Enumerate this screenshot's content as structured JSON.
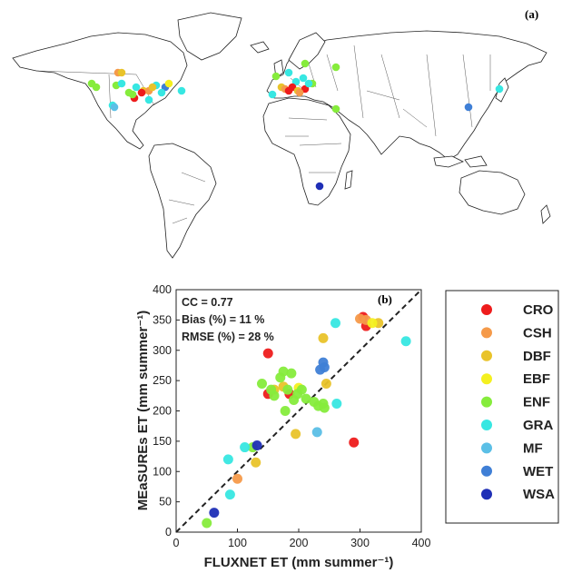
{
  "colors": {
    "CRO": "#ee1c1c",
    "CSH": "#f59a4a",
    "DBF": "#e9c32a",
    "EBF": "#f4f020",
    "ENF": "#86ec3c",
    "GRA": "#37e7e2",
    "MF": "#5bbfe6",
    "WET": "#3f7fd6",
    "WSA": "#1f2fb6"
  },
  "map_panel": {
    "label": "(a)",
    "content": "world map of FLUXNET sites colored by land cover class"
  },
  "chart_data": {
    "type": "scatter",
    "panel_label": "(b)",
    "xlabel": "FLUXNET ET (mm summer⁻¹)",
    "ylabel": "MEaSUREs ET (mm summer⁻¹)",
    "xlim": [
      0,
      400
    ],
    "ylim": [
      0,
      400
    ],
    "xticks": [
      0,
      100,
      200,
      300,
      400
    ],
    "yticks": [
      0,
      50,
      100,
      150,
      200,
      250,
      300,
      350,
      400
    ],
    "one_to_one_line": true,
    "grid": false,
    "legend_placement": "right",
    "stats": [
      "CC = 0.77",
      "Bias (%) = 11 %",
      "RMSE (%) = 28 %"
    ],
    "series": [
      {
        "name": "CRO",
        "points": [
          [
            150,
            228
          ],
          [
            150,
            295
          ],
          [
            185,
            228
          ],
          [
            290,
            148
          ],
          [
            305,
            355
          ],
          [
            310,
            340
          ]
        ]
      },
      {
        "name": "CSH",
        "points": [
          [
            100,
            88
          ],
          [
            300,
            352
          ],
          [
            310,
            350
          ]
        ]
      },
      {
        "name": "DBF",
        "points": [
          [
            130,
            115
          ],
          [
            160,
            235
          ],
          [
            175,
            240
          ],
          [
            195,
            162
          ],
          [
            240,
            320
          ],
          [
            245,
            245
          ],
          [
            330,
            345
          ]
        ]
      },
      {
        "name": "EBF",
        "points": [
          [
            200,
            238
          ],
          [
            320,
            345
          ]
        ]
      },
      {
        "name": "ENF",
        "points": [
          [
            50,
            15
          ],
          [
            125,
            140
          ],
          [
            140,
            245
          ],
          [
            155,
            235
          ],
          [
            160,
            225
          ],
          [
            170,
            255
          ],
          [
            175,
            265
          ],
          [
            178,
            200
          ],
          [
            182,
            235
          ],
          [
            188,
            262
          ],
          [
            192,
            218
          ],
          [
            198,
            228
          ],
          [
            205,
            235
          ],
          [
            212,
            220
          ],
          [
            225,
            215
          ],
          [
            232,
            208
          ],
          [
            240,
            212
          ],
          [
            242,
            205
          ]
        ]
      },
      {
        "name": "GRA",
        "points": [
          [
            85,
            120
          ],
          [
            88,
            62
          ],
          [
            112,
            140
          ],
          [
            260,
            345
          ],
          [
            262,
            212
          ],
          [
            375,
            315
          ]
        ]
      },
      {
        "name": "MF",
        "points": [
          [
            230,
            165
          ]
        ]
      },
      {
        "name": "WET",
        "points": [
          [
            235,
            268
          ],
          [
            240,
            280
          ],
          [
            242,
            272
          ]
        ]
      },
      {
        "name": "WSA",
        "points": [
          [
            62,
            32
          ],
          [
            132,
            143
          ]
        ]
      }
    ]
  }
}
